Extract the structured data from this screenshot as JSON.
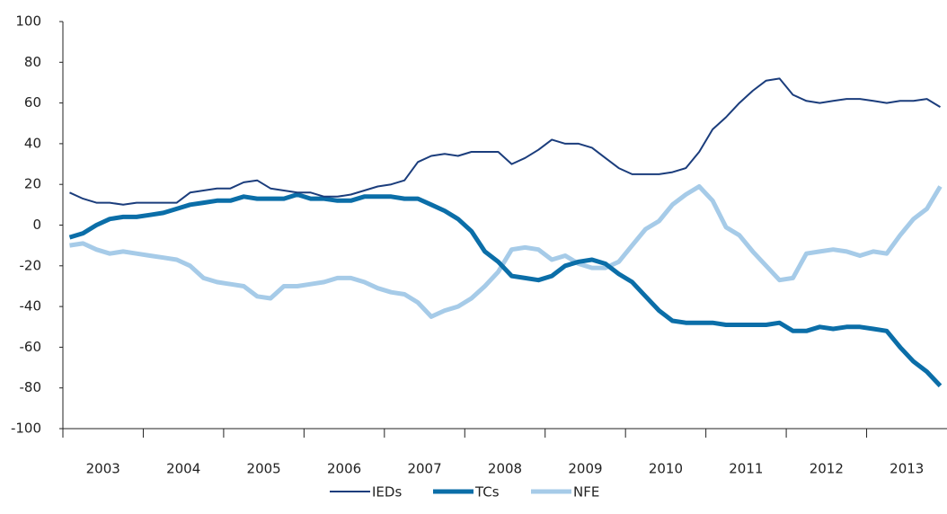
{
  "chart_data": {
    "type": "line",
    "categories": [
      "2003",
      null,
      null,
      null,
      null,
      null,
      "2004",
      null,
      null,
      null,
      null,
      null,
      "2005",
      null,
      null,
      null,
      null,
      null,
      "2006",
      null,
      null,
      null,
      null,
      null,
      "2007",
      null,
      null,
      null,
      null,
      null,
      "2008",
      null,
      null,
      null,
      null,
      null,
      "2009",
      null,
      null,
      null,
      null,
      null,
      "2010",
      null,
      null,
      null,
      null,
      null,
      "2011",
      null,
      null,
      null,
      null,
      null,
      "2012",
      null,
      null,
      null,
      null,
      null,
      "2013",
      null,
      null,
      null,
      null,
      null
    ],
    "series": [
      {
        "name": "IEDs",
        "color": "#1b3d7c",
        "values": [
          16,
          13,
          11,
          11,
          10,
          11,
          11,
          11,
          11,
          16,
          17,
          18,
          18,
          21,
          22,
          18,
          17,
          16,
          16,
          14,
          14,
          15,
          17,
          19,
          20,
          22,
          31,
          34,
          35,
          34,
          36,
          36,
          36,
          30,
          33,
          37,
          42,
          40,
          40,
          38,
          33,
          28,
          25,
          25,
          25,
          26,
          28,
          36,
          47,
          53,
          60,
          66,
          71,
          72,
          64,
          61,
          60,
          61,
          62,
          62,
          61,
          60,
          61,
          61,
          62,
          58
        ]
      },
      {
        "name": "TCs",
        "color": "#0b6ea8",
        "values": [
          -6,
          -4,
          0,
          3,
          4,
          4,
          5,
          6,
          8,
          10,
          11,
          12,
          12,
          14,
          13,
          13,
          13,
          15,
          13,
          13,
          12,
          12,
          14,
          14,
          14,
          13,
          13,
          10,
          7,
          3,
          -3,
          -13,
          -18,
          -25,
          -26,
          -27,
          -25,
          -20,
          -18,
          -17,
          -19,
          -24,
          -28,
          -35,
          -42,
          -47,
          -48,
          -48,
          -48,
          -49,
          -49,
          -49,
          -49,
          -48,
          -52,
          -52,
          -50,
          -51,
          -50,
          -50,
          -51,
          -52,
          -60,
          -67,
          -72,
          -79
        ]
      },
      {
        "name": "NFE",
        "color": "#a6cbe8",
        "values": [
          -10,
          -9,
          -12,
          -14,
          -13,
          -14,
          -15,
          -16,
          -17,
          -20,
          -26,
          -28,
          -29,
          -30,
          -35,
          -36,
          -30,
          -30,
          -29,
          -28,
          -26,
          -26,
          -28,
          -31,
          -33,
          -34,
          -38,
          -45,
          -42,
          -40,
          -36,
          -30,
          -23,
          -12,
          -11,
          -12,
          -17,
          -15,
          -19,
          -21,
          -21,
          -18,
          -10,
          -2,
          2,
          10,
          15,
          19,
          12,
          -1,
          -5,
          -13,
          -20,
          -27,
          -26,
          -14,
          -13,
          -12,
          -13,
          -15,
          -13,
          -14,
          -5,
          3,
          8,
          19
        ]
      }
    ],
    "ylim": [
      -100,
      100
    ],
    "yticks": [
      -100,
      -80,
      -60,
      -40,
      -20,
      0,
      20,
      40,
      60,
      80,
      100
    ]
  }
}
